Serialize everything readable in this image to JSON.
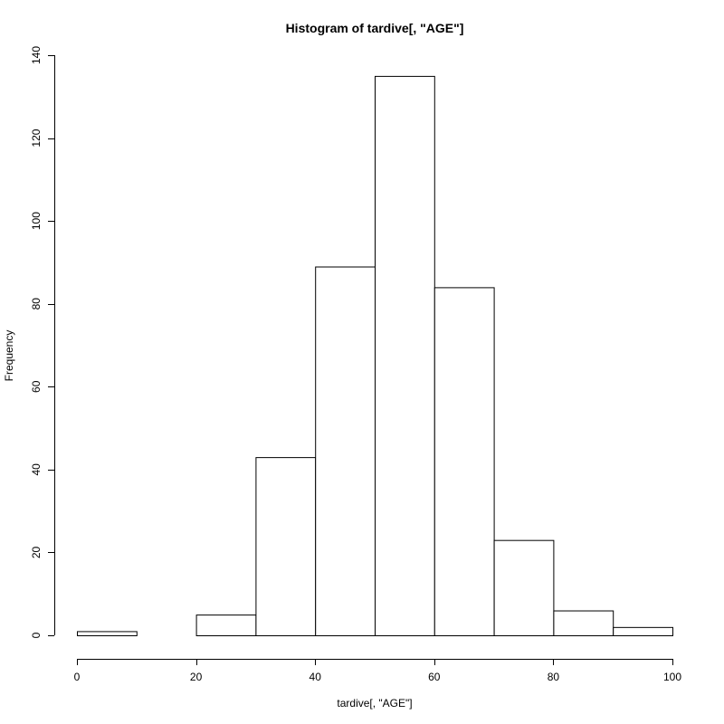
{
  "chart_data": {
    "type": "bar",
    "title": "Histogram of tardive[, \"AGE\"]",
    "xlabel": "tardive[, \"AGE\"]",
    "ylabel": "Frequency",
    "bins": [
      {
        "start": 0,
        "end": 10,
        "count": 1
      },
      {
        "start": 10,
        "end": 20,
        "count": 0
      },
      {
        "start": 20,
        "end": 30,
        "count": 5
      },
      {
        "start": 30,
        "end": 40,
        "count": 43
      },
      {
        "start": 40,
        "end": 50,
        "count": 89
      },
      {
        "start": 50,
        "end": 60,
        "count": 135
      },
      {
        "start": 60,
        "end": 70,
        "count": 84
      },
      {
        "start": 70,
        "end": 80,
        "count": 23
      },
      {
        "start": 80,
        "end": 90,
        "count": 6
      },
      {
        "start": 90,
        "end": 100,
        "count": 2
      }
    ],
    "xlim": [
      0,
      100
    ],
    "ylim": [
      0,
      140
    ],
    "x_ticks": [
      "0",
      "20",
      "40",
      "60",
      "80",
      "100"
    ],
    "y_ticks": [
      "0",
      "20",
      "40",
      "60",
      "80",
      "100",
      "120",
      "140"
    ],
    "grid": false,
    "colors": {
      "bar_fill": "#ffffff",
      "bar_stroke": "#000000"
    }
  }
}
